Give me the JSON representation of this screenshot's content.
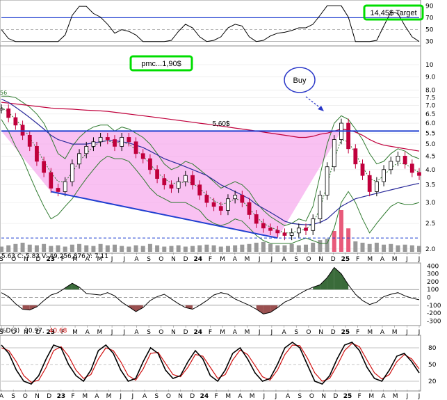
{
  "header": {
    "target_label": "14,45$ Target",
    "pmc_label": "pmc...1,90$",
    "buy_label": "Buy",
    "level_label": "5,60$",
    "ma_marker": "56",
    "ohlc_readout": "5.63  C: 5.83  V: 49,256,876  Y: 7.11",
    "stoch_label_a": "%D(3)",
    "stoch_value_a": "30.97,",
    "stoch_value_b": "40.68"
  },
  "chart_data": [
    {
      "type": "line",
      "panel": "top-oscillator",
      "y_ticks": [
        30,
        50,
        70,
        90
      ],
      "ylim": [
        25,
        95
      ],
      "reference_lines": [
        30,
        50,
        70
      ],
      "note_colors": {
        "line": "#000000",
        "fill_above": "#3a6b3a",
        "ref70": "#1f3fd0"
      }
    },
    {
      "type": "line",
      "panel": "price",
      "scale": "log",
      "ylim": [
        1.95,
        11.5
      ],
      "y_ticks": [
        "10",
        "9.0",
        "8.0",
        "7.5",
        "7.0",
        "6.5",
        "6.0",
        "5.5",
        "5.0",
        "4.5",
        "4.0",
        "3.5",
        "3.0",
        "2.5",
        "2.0"
      ],
      "y_tick_values": [
        10,
        9,
        8,
        7.5,
        7,
        6.5,
        6,
        5.5,
        5,
        4.5,
        4,
        3.5,
        3,
        2.5,
        2
      ],
      "x_ticks": [
        "S",
        "O",
        "N",
        "D",
        "23",
        "F",
        "M",
        "A",
        "M",
        "J",
        "J",
        "A",
        "S",
        "O",
        "N",
        "D",
        "24",
        "F",
        "M",
        "A",
        "M",
        "J",
        "J",
        "A",
        "S",
        "O",
        "N",
        "D",
        "25",
        "F",
        "M",
        "A",
        "M",
        "J",
        "J"
      ],
      "bold_ticks": [
        "23",
        "24",
        "25"
      ],
      "price_close": [
        6.8,
        6.3,
        5.9,
        5.4,
        4.9,
        4.3,
        3.9,
        3.4,
        3.3,
        3.6,
        4.2,
        4.6,
        4.9,
        5.1,
        5.3,
        5.2,
        4.9,
        5.3,
        5.1,
        4.6,
        4.4,
        4.0,
        3.7,
        3.5,
        3.4,
        3.6,
        3.8,
        3.5,
        3.2,
        3.0,
        2.9,
        2.8,
        3.1,
        3.2,
        3.0,
        2.7,
        2.5,
        2.4,
        2.35,
        2.3,
        2.25,
        2.3,
        2.4,
        2.35,
        2.6,
        3.2,
        4.1,
        5.2,
        6.0,
        4.8,
        4.2,
        3.8,
        3.3,
        3.6,
        4.0,
        4.3,
        4.5,
        4.2,
        3.9,
        3.8
      ],
      "ma_long": [
        7.2,
        7.15,
        7.1,
        7.05,
        7.0,
        6.95,
        6.9,
        6.85,
        6.82,
        6.8,
        6.78,
        6.75,
        6.72,
        6.7,
        6.68,
        6.65,
        6.6,
        6.55,
        6.5,
        6.45,
        6.4,
        6.35,
        6.3,
        6.25,
        6.2,
        6.15,
        6.1,
        6.05,
        6.0,
        5.95,
        5.9,
        5.85,
        5.8,
        5.75,
        5.7,
        5.65,
        5.6,
        5.55,
        5.5,
        5.45,
        5.4,
        5.35,
        5.3,
        5.3,
        5.35,
        5.45,
        5.5,
        5.6,
        5.7,
        5.65,
        5.55,
        5.4,
        5.2,
        5.05,
        4.95,
        4.9,
        4.85,
        4.8,
        4.75,
        4.7
      ],
      "ma_mid": [
        7.4,
        7.2,
        6.9,
        6.6,
        6.3,
        6.0,
        5.7,
        5.4,
        5.2,
        5.1,
        5.0,
        5.0,
        5.0,
        5.05,
        5.1,
        5.15,
        5.15,
        5.1,
        5.05,
        4.95,
        4.85,
        4.7,
        4.55,
        4.4,
        4.3,
        4.2,
        4.1,
        4.0,
        3.9,
        3.8,
        3.65,
        3.5,
        3.4,
        3.3,
        3.2,
        3.1,
        2.95,
        2.85,
        2.75,
        2.65,
        2.55,
        2.5,
        2.48,
        2.47,
        2.48,
        2.52,
        2.6,
        2.75,
        2.9,
        3.0,
        3.1,
        3.15,
        3.2,
        3.25,
        3.3,
        3.35,
        3.4,
        3.45,
        3.5,
        3.55
      ],
      "ma_short": [
        6.9,
        6.6,
        6.2,
        5.8,
        5.3,
        4.8,
        4.3,
        3.9,
        3.6,
        3.6,
        3.9,
        4.3,
        4.6,
        4.9,
        5.1,
        5.15,
        5.05,
        5.1,
        5.0,
        4.75,
        4.5,
        4.2,
        3.9,
        3.7,
        3.55,
        3.55,
        3.6,
        3.55,
        3.4,
        3.2,
        3.05,
        2.95,
        3.0,
        3.1,
        3.05,
        2.85,
        2.65,
        2.5,
        2.42,
        2.36,
        2.3,
        2.3,
        2.35,
        2.38,
        2.5,
        2.85,
        3.5,
        4.4,
        5.2,
        5.1,
        4.6,
        4.1,
        3.7,
        3.6,
        3.8,
        4.05,
        4.25,
        4.2,
        4.05,
        3.9
      ],
      "bb_upper": [
        7.6,
        7.6,
        7.5,
        7.2,
        6.9,
        6.5,
        6.0,
        5.3,
        4.6,
        4.4,
        4.9,
        5.3,
        5.6,
        5.8,
        5.9,
        5.9,
        5.6,
        5.8,
        5.7,
        5.5,
        5.3,
        5.0,
        4.6,
        4.2,
        4.0,
        4.1,
        4.3,
        4.2,
        4.0,
        3.8,
        3.6,
        3.4,
        3.5,
        3.6,
        3.5,
        3.3,
        3.0,
        2.8,
        2.65,
        2.55,
        2.45,
        2.5,
        2.6,
        2.55,
        2.9,
        3.8,
        5.0,
        6.0,
        6.4,
        6.2,
        5.7,
        5.2,
        4.6,
        4.2,
        4.3,
        4.6,
        4.8,
        4.7,
        4.5,
        4.4
      ],
      "bb_lower": [
        6.2,
        5.6,
        4.9,
        4.4,
        3.8,
        3.3,
        2.9,
        2.6,
        2.7,
        2.9,
        3.1,
        3.4,
        3.7,
        4.0,
        4.3,
        4.5,
        4.4,
        4.4,
        4.3,
        4.0,
        3.7,
        3.4,
        3.2,
        3.1,
        3.0,
        3.0,
        3.0,
        2.9,
        2.8,
        2.6,
        2.5,
        2.45,
        2.5,
        2.6,
        2.55,
        2.4,
        2.25,
        2.15,
        2.1,
        2.1,
        2.1,
        2.1,
        2.15,
        2.2,
        2.15,
        2.1,
        2.1,
        2.4,
        3.0,
        3.3,
        3.0,
        2.6,
        2.3,
        2.5,
        2.7,
        2.9,
        3.0,
        2.95,
        2.95,
        3.0
      ],
      "volume_rel": [
        0.4,
        0.5,
        0.6,
        0.7,
        0.55,
        0.5,
        0.6,
        0.45,
        0.5,
        0.4,
        0.55,
        0.6,
        0.5,
        0.45,
        0.6,
        0.5,
        0.55,
        0.45,
        0.4,
        0.5,
        0.45,
        0.6,
        0.5,
        0.4,
        0.45,
        0.5,
        0.4,
        0.45,
        0.5,
        0.55,
        0.5,
        0.4,
        0.45,
        0.5,
        0.55,
        0.6,
        0.7,
        0.75,
        0.6,
        0.5,
        0.5,
        0.6,
        0.5,
        0.55,
        0.7,
        0.9,
        1.0,
        1.6,
        3.2,
        1.8,
        0.8,
        0.7,
        0.6,
        0.7,
        0.55,
        0.6,
        0.5,
        0.55,
        0.5,
        0.45
      ],
      "horizontal_level": 5.6,
      "support_line": {
        "from_index": 7,
        "to_index": 39,
        "from_value": 3.3,
        "to_value": 2.2
      },
      "dashed_level": 2.2,
      "colors": {
        "candles_up": "#ffffff",
        "candles_down": "#c0003c",
        "ma_long": "#c0003c",
        "ma_mid": "#2a2a9a",
        "ma_short": "#2f7a2f",
        "bollinger": "#2f7a2f",
        "level": "#1f3fd0",
        "shade": "#f6a6ec",
        "volume": "#999999",
        "volume_highlight": "#e85a7a",
        "green_box": "#00dd00",
        "buy_circle": "#2a38c8"
      }
    },
    {
      "type": "area",
      "panel": "cci",
      "y_ticks": [
        "400",
        "300",
        "200",
        "100",
        "0",
        "-100",
        "-200",
        "-300"
      ],
      "y_tick_values": [
        400,
        300,
        200,
        100,
        0,
        -100,
        -200,
        -300
      ],
      "ylim": [
        -340,
        420
      ],
      "x_ticks": [
        "S",
        "O",
        "N",
        "D",
        "23",
        "F",
        "M",
        "A",
        "M",
        "J",
        "J",
        "A",
        "S",
        "O",
        "N",
        "D",
        "24",
        "F",
        "M",
        "A",
        "M",
        "J",
        "J",
        "A",
        "S",
        "O",
        "N",
        "D",
        "25",
        "F",
        "M",
        "A",
        "M",
        "J",
        "J"
      ],
      "values": [
        60,
        10,
        -80,
        -150,
        -160,
        -120,
        -40,
        30,
        60,
        120,
        180,
        130,
        50,
        40,
        30,
        60,
        20,
        -60,
        -120,
        -180,
        -130,
        -40,
        10,
        40,
        -20,
        -80,
        -130,
        -150,
        -100,
        -40,
        30,
        60,
        40,
        -20,
        -60,
        -100,
        -150,
        -210,
        -190,
        -130,
        -60,
        -20,
        40,
        90,
        130,
        160,
        250,
        380,
        300,
        160,
        40,
        -40,
        -90,
        -60,
        10,
        40,
        60,
        20,
        -10,
        -30
      ],
      "colors": {
        "line": "#000000",
        "fill_pos": "#3a6b3a",
        "fill_neg": "#9a5050",
        "ref": "#000000"
      }
    },
    {
      "type": "line",
      "panel": "stochastic",
      "y_ticks": [
        20,
        50,
        80
      ],
      "ylim": [
        5,
        100
      ],
      "x_ticks": [
        "A",
        "S",
        "O",
        "N",
        "D",
        "23",
        "F",
        "M",
        "A",
        "M",
        "J",
        "J",
        "A",
        "S",
        "O",
        "N",
        "D",
        "24",
        "F",
        "M",
        "A",
        "M",
        "J",
        "J",
        "A",
        "S",
        "O",
        "N",
        "D",
        "25",
        "F",
        "M",
        "A",
        "M",
        "J",
        "J"
      ],
      "series": [
        {
          "values": [
            85,
            70,
            40,
            20,
            15,
            30,
            60,
            85,
            80,
            50,
            30,
            20,
            40,
            75,
            85,
            70,
            40,
            20,
            25,
            55,
            80,
            70,
            40,
            25,
            30,
            55,
            75,
            60,
            30,
            20,
            40,
            70,
            80,
            60,
            35,
            20,
            25,
            50,
            80,
            90,
            80,
            50,
            20,
            15,
            30,
            60,
            85,
            90,
            75,
            45,
            25,
            20,
            40,
            65,
            70,
            55,
            35
          ]
        },
        {
          "values": [
            80,
            75,
            55,
            30,
            18,
            22,
            45,
            75,
            82,
            65,
            40,
            25,
            32,
            60,
            80,
            75,
            55,
            30,
            22,
            42,
            70,
            72,
            52,
            32,
            28,
            45,
            68,
            65,
            45,
            25,
            32,
            58,
            76,
            68,
            48,
            28,
            22,
            40,
            68,
            85,
            84,
            62,
            35,
            20,
            25,
            48,
            75,
            88,
            82,
            58,
            35,
            24,
            32,
            55,
            68,
            60,
            42
          ]
        }
      ],
      "colors": {
        "k": "#000000",
        "d": "#d01010"
      }
    }
  ]
}
